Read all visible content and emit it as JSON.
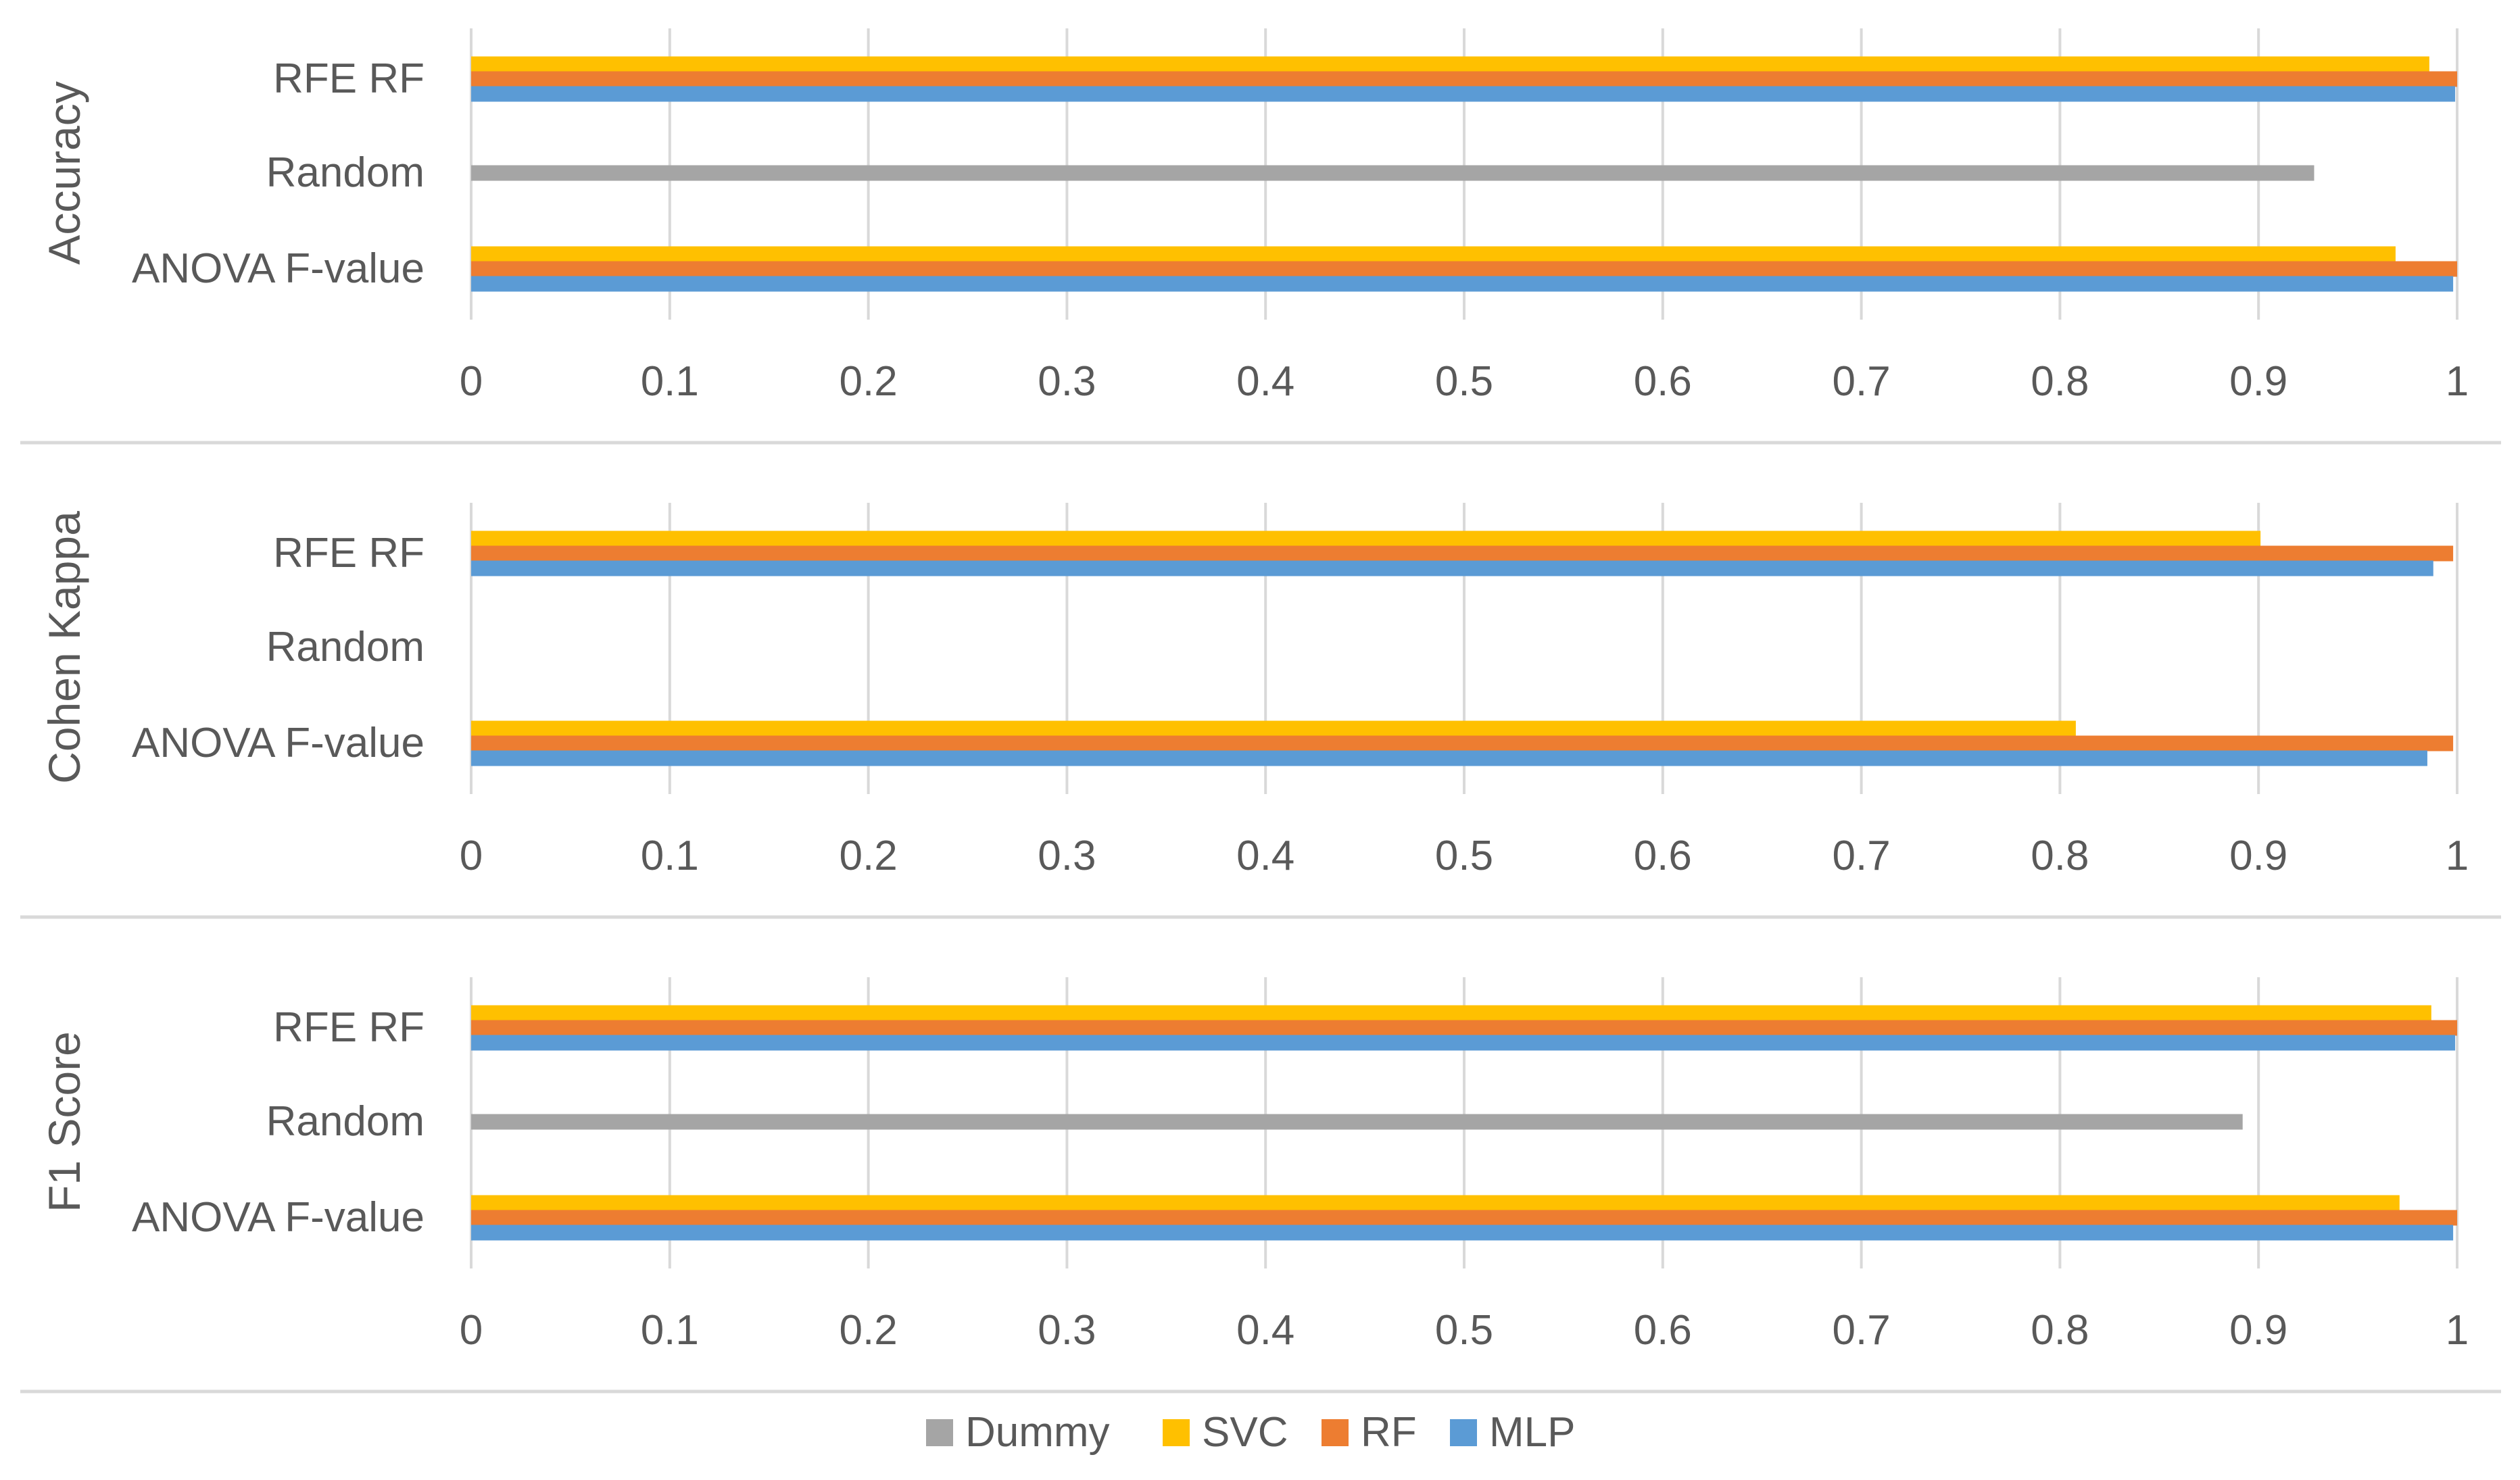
{
  "chart_data": {
    "type": "bar",
    "orientation": "horizontal",
    "categories": [
      "RFE RF",
      "Random",
      "ANOVA F-value"
    ],
    "xlim": [
      0,
      1
    ],
    "x_ticks": [
      "0",
      "0.1",
      "0.2",
      "0.3",
      "0.4",
      "0.5",
      "0.6",
      "0.7",
      "0.8",
      "0.9",
      "1"
    ],
    "grid": "vertical",
    "legend_position": "bottom",
    "series_meta": [
      {
        "name": "Dummy",
        "color": "#a5a5a5"
      },
      {
        "name": "SVC",
        "color": "#ffc000"
      },
      {
        "name": "RF",
        "color": "#ed7d31"
      },
      {
        "name": "MLP",
        "color": "#5b9bd5"
      }
    ],
    "panels": [
      {
        "title": "Accuracy",
        "series": [
          {
            "name": "Dummy",
            "values": [
              null,
              0.928,
              null
            ]
          },
          {
            "name": "SVC",
            "values": [
              0.986,
              null,
              0.969
            ]
          },
          {
            "name": "RF",
            "values": [
              1.0,
              null,
              1.0
            ]
          },
          {
            "name": "MLP",
            "values": [
              0.999,
              null,
              0.998
            ]
          }
        ]
      },
      {
        "title": "Cohen Kappa",
        "series": [
          {
            "name": "Dummy",
            "values": [
              null,
              null,
              null
            ]
          },
          {
            "name": "SVC",
            "values": [
              0.901,
              null,
              0.808
            ]
          },
          {
            "name": "RF",
            "values": [
              0.998,
              null,
              0.998
            ]
          },
          {
            "name": "MLP",
            "values": [
              0.988,
              null,
              0.985
            ]
          }
        ]
      },
      {
        "title": "F1 Score",
        "series": [
          {
            "name": "Dummy",
            "values": [
              null,
              0.892,
              null
            ]
          },
          {
            "name": "SVC",
            "values": [
              0.987,
              null,
              0.971
            ]
          },
          {
            "name": "RF",
            "values": [
              1.0,
              null,
              1.0
            ]
          },
          {
            "name": "MLP",
            "values": [
              0.999,
              null,
              0.998
            ]
          }
        ]
      }
    ]
  }
}
